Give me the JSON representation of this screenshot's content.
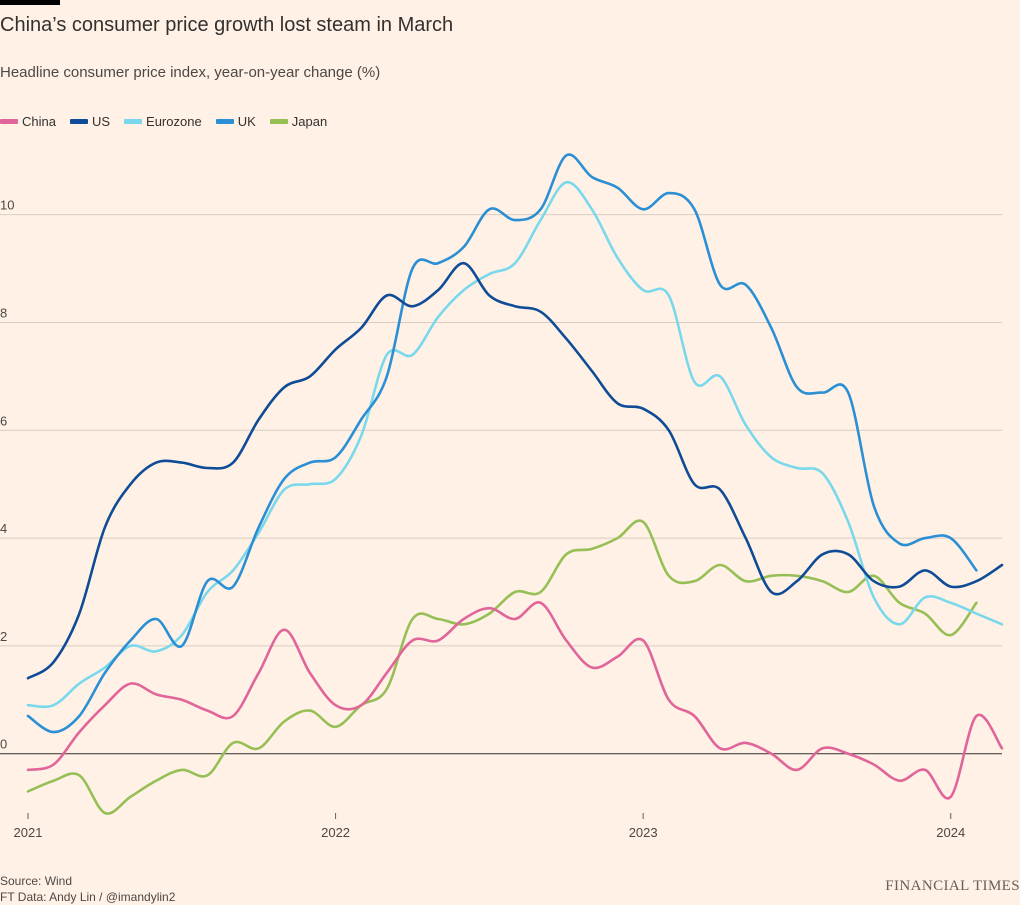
{
  "chart_data": {
    "type": "line",
    "title": "China’s consumer price growth lost steam in March",
    "subtitle": "Headline consumer price index, year-on-year change (%)",
    "ylim": [
      -1.1,
      11.2
    ],
    "yticks": [
      0,
      2,
      4,
      6,
      8,
      10
    ],
    "xticks": [
      "2021",
      "2022",
      "2023",
      "2024"
    ],
    "x_start": "2021-01",
    "x_end": "2024-03",
    "grid": true,
    "legend": "top-left",
    "series": [
      {
        "name": "China",
        "color": "#e0659a",
        "start": "2021-01",
        "values": [
          -0.3,
          -0.2,
          0.4,
          0.9,
          1.3,
          1.1,
          1.0,
          0.8,
          0.7,
          1.5,
          2.3,
          1.5,
          0.9,
          0.9,
          1.5,
          2.1,
          2.1,
          2.5,
          2.7,
          2.5,
          2.8,
          2.1,
          1.6,
          1.8,
          2.1,
          1.0,
          0.7,
          0.1,
          0.2,
          0.0,
          -0.3,
          0.1,
          0.0,
          -0.2,
          -0.5,
          -0.3,
          -0.8,
          0.7,
          0.1
        ]
      },
      {
        "name": "US",
        "color": "#0f4c97",
        "start": "2021-01",
        "values": [
          1.4,
          1.7,
          2.6,
          4.2,
          5.0,
          5.4,
          5.4,
          5.3,
          5.4,
          6.2,
          6.8,
          7.0,
          7.5,
          7.9,
          8.5,
          8.3,
          8.6,
          9.1,
          8.5,
          8.3,
          8.2,
          7.7,
          7.1,
          6.5,
          6.4,
          6.0,
          5.0,
          4.9,
          4.0,
          3.0,
          3.2,
          3.7,
          3.7,
          3.2,
          3.1,
          3.4,
          3.1,
          3.2,
          3.5
        ]
      },
      {
        "name": "Eurozone",
        "color": "#7ad8ec",
        "start": "2021-01",
        "values": [
          0.9,
          0.9,
          1.3,
          1.6,
          2.0,
          1.9,
          2.2,
          3.0,
          3.4,
          4.1,
          4.9,
          5.0,
          5.1,
          5.9,
          7.4,
          7.4,
          8.1,
          8.6,
          8.9,
          9.1,
          9.9,
          10.6,
          10.1,
          9.2,
          8.6,
          8.5,
          6.9,
          7.0,
          6.1,
          5.5,
          5.3,
          5.2,
          4.3,
          2.9,
          2.4,
          2.9,
          2.8,
          2.6,
          2.4
        ]
      },
      {
        "name": "UK",
        "color": "#2a8fd4",
        "start": "2021-01",
        "values": [
          0.7,
          0.4,
          0.7,
          1.5,
          2.1,
          2.5,
          2.0,
          3.2,
          3.1,
          4.2,
          5.1,
          5.4,
          5.5,
          6.2,
          7.0,
          9.0,
          9.1,
          9.4,
          10.1,
          9.9,
          10.1,
          11.1,
          10.7,
          10.5,
          10.1,
          10.4,
          10.1,
          8.7,
          8.7,
          7.9,
          6.8,
          6.7,
          6.7,
          4.6,
          3.9,
          4.0,
          4.0,
          3.4
        ]
      },
      {
        "name": "Japan",
        "color": "#96bf56",
        "start": "2021-01",
        "values": [
          -0.7,
          -0.5,
          -0.4,
          -1.1,
          -0.8,
          -0.5,
          -0.3,
          -0.4,
          0.2,
          0.1,
          0.6,
          0.8,
          0.5,
          0.9,
          1.2,
          2.5,
          2.5,
          2.4,
          2.6,
          3.0,
          3.0,
          3.7,
          3.8,
          4.0,
          4.3,
          3.3,
          3.2,
          3.5,
          3.2,
          3.3,
          3.3,
          3.2,
          3.0,
          3.3,
          2.8,
          2.6,
          2.2,
          2.8
        ]
      }
    ]
  },
  "footer": {
    "source": "Source: Wind",
    "credit": "FT Data: Andy Lin / @imandylin2",
    "brand": "FINANCIAL TIMES"
  }
}
